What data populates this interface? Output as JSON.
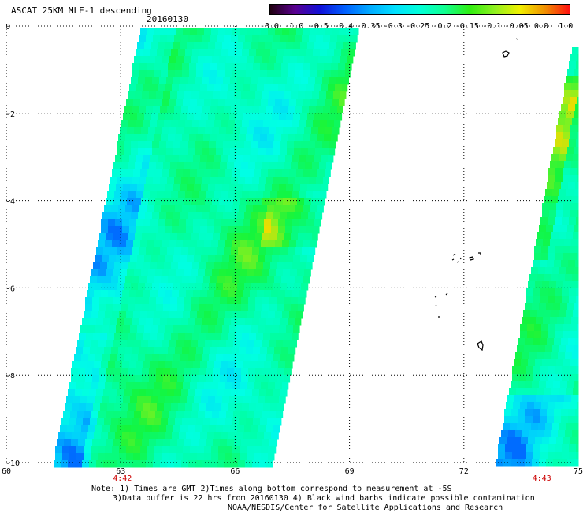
{
  "title": "ASCAT 25KM MLE-1 descending",
  "date": "20160130",
  "colorbar": {
    "labels": [
      "-3.0",
      "-1.0",
      "-0.5",
      "-0.4",
      "-0.35",
      "-0.3",
      "-0.25",
      "-0.2",
      "-0.15",
      "-0.1",
      "-0.05",
      "0.0",
      "1.0"
    ],
    "colors": [
      "#200010",
      "#5a0090",
      "#1010d8",
      "#0060ff",
      "#00aaff",
      "#00e0ff",
      "#00ffd8",
      "#10ff90",
      "#30ee10",
      "#90f020",
      "#f0f000",
      "#f09000",
      "#ff1010"
    ]
  },
  "map": {
    "lon_range": [
      60,
      75
    ],
    "lat_range": [
      -10,
      0
    ],
    "x_ticks": [
      "60",
      "63",
      "66",
      "69",
      "72",
      "75"
    ],
    "y_ticks": [
      "0",
      "-2",
      "-4",
      "-6",
      "-8",
      "-10"
    ],
    "time_labels": [
      {
        "lon": 63,
        "text": "4:42"
      },
      {
        "lon": 74,
        "text": "4:43"
      }
    ]
  },
  "notes": [
    "Note: 1) Times are GMT 2)Times along bottom correspond to measurement at -5S",
    "3)Data buffer is 22 hrs from 20160130 4) Black wind barbs indicate possible contamination",
    "NOAA/NESDIS/Center for Satellite Applications and Research"
  ]
}
